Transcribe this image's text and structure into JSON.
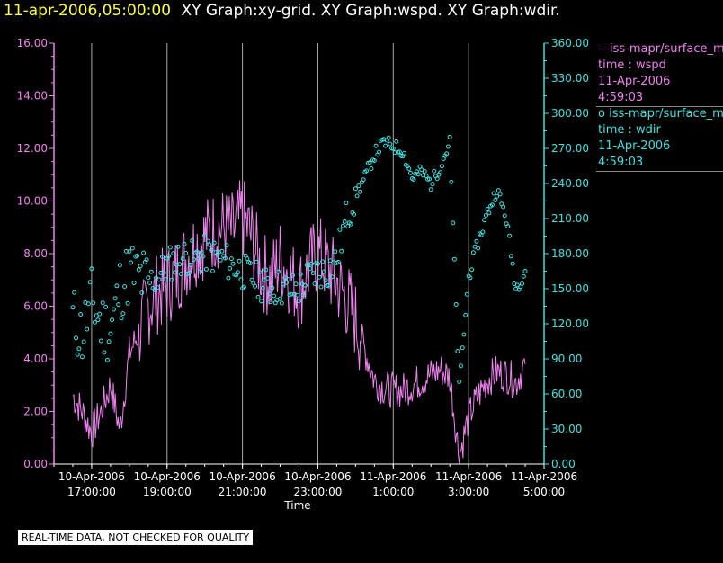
{
  "header": {
    "timestamp": "11-apr-2006,05:00:00",
    "graphs": "XY Graph:xy-grid.  XY Graph:wspd.  XY Graph:wdir."
  },
  "legend": {
    "wspd": {
      "series": "—iss-mapr/surface_m",
      "field": "time : wspd",
      "date": "11-Apr-2006",
      "time": "4:59:03"
    },
    "wdir": {
      "series": "o  iss-mapr/surface_m",
      "field": "time : wdir",
      "date": "11-Apr-2006",
      "time": "4:59:03"
    }
  },
  "disclaimer": "REAL-TIME DATA, NOT CHECKED FOR QUALITY",
  "colors": {
    "wspd": "#ee82ee",
    "wdir": "#40e0e0",
    "grid": "#aaaaaa",
    "axis_left": "#ee82ee",
    "axis_right": "#40e0e0"
  },
  "chart_data": {
    "type": "scatter",
    "xlabel": "Time",
    "x_ticks": [
      {
        "date": "10-Apr-2006",
        "time": "17:00:00"
      },
      {
        "date": "10-Apr-2006",
        "time": "19:00:00"
      },
      {
        "date": "10-Apr-2006",
        "time": "21:00:00"
      },
      {
        "date": "10-Apr-2006",
        "time": "23:00:00"
      },
      {
        "date": "11-Apr-2006",
        "time": "1:00:00"
      },
      {
        "date": "11-Apr-2006",
        "time": "3:00:00"
      },
      {
        "date": "11-Apr-2006",
        "time": "5:00:00"
      }
    ],
    "xlim_hours": [
      -1.0,
      12.0
    ],
    "y_left": {
      "label": "wspd",
      "range": [
        0,
        16
      ],
      "ticks": [
        "0.00",
        "2.00",
        "4.00",
        "6.00",
        "8.00",
        "10.00",
        "12.00",
        "14.00",
        "16.00"
      ]
    },
    "y_right": {
      "label": "wdir",
      "range": [
        0,
        360
      ],
      "ticks": [
        "0.00",
        "30.00",
        "60.00",
        "90.00",
        "120.00",
        "150.00",
        "180.00",
        "210.00",
        "240.00",
        "270.00",
        "300.00",
        "330.00",
        "360.00"
      ]
    },
    "series": [
      {
        "name": "wspd",
        "style": "line",
        "axis": "left",
        "hours": [
          -0.5,
          -0.25,
          0.0,
          0.25,
          0.5,
          0.75,
          1.0,
          1.25,
          1.5,
          1.75,
          2.0,
          2.25,
          2.5,
          2.75,
          3.0,
          3.25,
          3.5,
          3.75,
          4.0,
          4.25,
          4.5,
          4.75,
          5.0,
          5.25,
          5.5,
          5.75,
          6.0,
          6.25,
          6.5,
          6.75,
          7.0,
          7.25,
          7.5,
          7.75,
          8.0,
          8.25,
          8.5,
          8.75,
          9.0,
          9.25,
          9.5,
          9.75,
          10.0,
          10.25,
          10.5,
          10.75,
          11.0,
          11.25,
          11.5
        ],
        "values": [
          2.6,
          2.0,
          1.2,
          2.0,
          3.0,
          1.3,
          4.2,
          5.0,
          6.0,
          6.5,
          6.8,
          7.2,
          7.8,
          8.3,
          8.6,
          8.9,
          9.0,
          8.8,
          9.4,
          8.6,
          7.4,
          7.0,
          7.8,
          7.2,
          6.6,
          7.4,
          8.0,
          7.5,
          6.9,
          6.3,
          5.5,
          4.3,
          3.2,
          2.9,
          2.8,
          2.8,
          3.0,
          3.2,
          3.4,
          3.6,
          3.3,
          0.3,
          1.8,
          2.6,
          3.2,
          3.5,
          3.4,
          3.1,
          3.8
        ]
      },
      {
        "name": "wdir",
        "style": "markers",
        "axis": "right",
        "hours": [
          -0.5,
          -0.25,
          0.0,
          0.25,
          0.5,
          0.75,
          1.0,
          1.25,
          1.5,
          1.75,
          2.0,
          2.25,
          2.5,
          2.75,
          3.0,
          3.25,
          3.5,
          3.75,
          4.0,
          4.25,
          4.5,
          4.75,
          5.0,
          5.25,
          5.5,
          5.75,
          6.0,
          6.25,
          6.5,
          6.75,
          7.0,
          7.25,
          7.5,
          7.75,
          8.0,
          8.25,
          8.5,
          8.75,
          9.0,
          9.25,
          9.5,
          9.75,
          10.0,
          10.25,
          10.5,
          10.75,
          11.0,
          11.25,
          11.5
        ],
        "values": [
          125,
          110,
          140,
          120,
          115,
          150,
          165,
          160,
          155,
          160,
          170,
          175,
          178,
          175,
          180,
          178,
          175,
          170,
          165,
          160,
          155,
          150,
          152,
          148,
          150,
          160,
          165,
          165,
          175,
          210,
          230,
          245,
          265,
          275,
          272,
          268,
          245,
          250,
          240,
          255,
          275,
          65,
          160,
          190,
          215,
          235,
          210,
          150,
          165
        ]
      }
    ]
  }
}
